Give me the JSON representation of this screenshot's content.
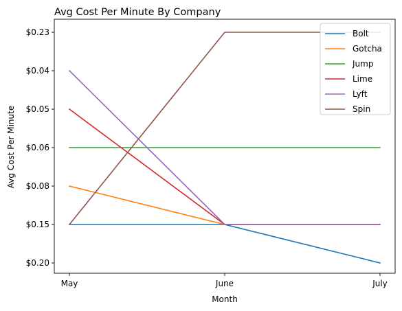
{
  "chart_data": {
    "type": "line",
    "title": "Avg Cost Per Minute By Company",
    "xlabel": "Month",
    "ylabel": "Avg Cost Per Minute",
    "categories": [
      "May",
      "June",
      "July"
    ],
    "y_categories": [
      "$0.20",
      "$0.15",
      "$0.08",
      "$0.06",
      "$0.05",
      "$0.04",
      "$0.23"
    ],
    "y_axis_note": "categorical y-axis; tick labels listed bottom to top in displayed order",
    "grid": false,
    "legend_position": "top-right",
    "series": [
      {
        "name": "Bolt",
        "color": "#1f77b4",
        "values": [
          "$0.15",
          "$0.15",
          "$0.20"
        ]
      },
      {
        "name": "Gotcha",
        "color": "#ff7f0e",
        "values": [
          "$0.08",
          "$0.15",
          "$0.15"
        ]
      },
      {
        "name": "Jump",
        "color": "#2ca02c",
        "values": [
          "$0.06",
          "$0.06",
          "$0.06"
        ]
      },
      {
        "name": "Lime",
        "color": "#d62728",
        "values": [
          "$0.05",
          "$0.15",
          "$0.15"
        ]
      },
      {
        "name": "Lyft",
        "color": "#9467bd",
        "values": [
          "$0.04",
          "$0.15",
          "$0.15"
        ]
      },
      {
        "name": "Spin",
        "color": "#8c564b",
        "values": [
          "$0.15",
          "$0.23",
          "$0.23"
        ]
      }
    ]
  }
}
